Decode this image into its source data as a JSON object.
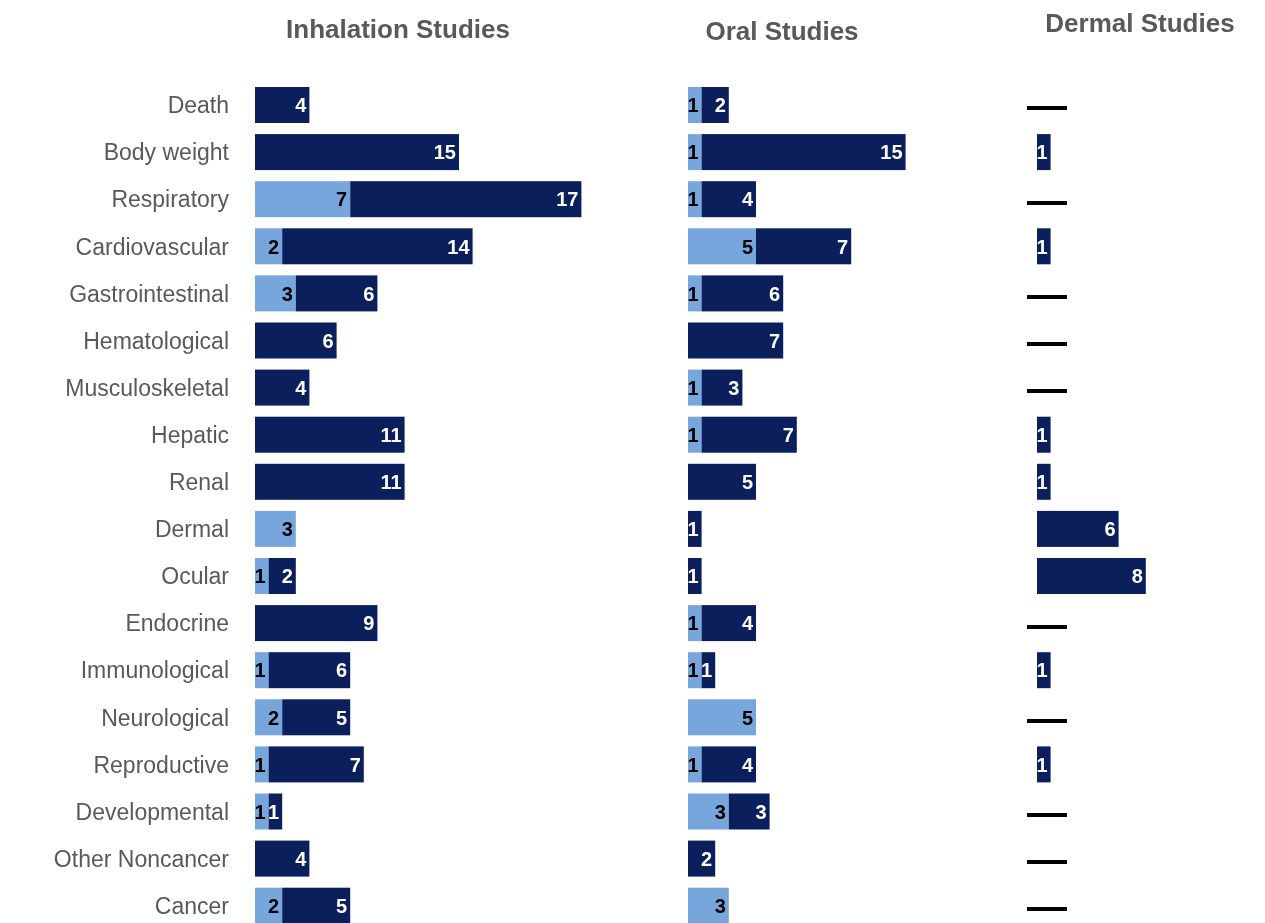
{
  "chart_data": [
    {
      "type": "bar",
      "orientation": "horizontal",
      "stacked": true,
      "title": "Inhalation Studies",
      "tick_labels": "y",
      "data_labels": true,
      "categories": [
        "Death",
        "Body weight",
        "Respiratory",
        "Cardiovascular",
        "Gastrointestinal",
        "Hematological",
        "Musculoskeletal",
        "Hepatic",
        "Renal",
        "Dermal",
        "Ocular",
        "Endocrine",
        "Immunological",
        "Neurological",
        "Reproductive",
        "Developmental",
        "Other Noncancer",
        "Cancer"
      ],
      "series": [
        {
          "color": "#77a6dc",
          "values": [
            null,
            null,
            7,
            2,
            3,
            null,
            null,
            null,
            null,
            3,
            1,
            null,
            1,
            2,
            1,
            1,
            null,
            2
          ]
        },
        {
          "color": "#0b1f5c",
          "values": [
            4,
            15,
            17,
            14,
            6,
            6,
            4,
            11,
            11,
            null,
            2,
            9,
            6,
            5,
            7,
            1,
            4,
            5
          ]
        }
      ]
    },
    {
      "type": "bar",
      "orientation": "horizontal",
      "stacked": true,
      "title": "Oral Studies",
      "tick_labels": false,
      "data_labels": true,
      "categories": [
        null,
        null,
        null,
        null,
        null,
        null,
        null,
        null,
        null,
        null,
        null,
        null,
        null,
        null,
        null,
        null,
        null,
        null
      ],
      "series": [
        {
          "color": "#77a6dc",
          "values": [
            1,
            1,
            1,
            5,
            1,
            null,
            1,
            1,
            null,
            null,
            null,
            1,
            1,
            5,
            1,
            3,
            null,
            3
          ]
        },
        {
          "color": "#0b1f5c",
          "values": [
            2,
            15,
            4,
            7,
            6,
            7,
            3,
            7,
            5,
            1,
            1,
            4,
            1,
            null,
            4,
            3,
            2,
            null
          ]
        }
      ]
    },
    {
      "type": "bar",
      "orientation": "horizontal",
      "stacked": true,
      "title": "Dermal Studies",
      "tick_labels": false,
      "categories": [
        null,
        null,
        null,
        null,
        null,
        null,
        null,
        null,
        null,
        null,
        null,
        null,
        null,
        null,
        null,
        null,
        null,
        null
      ],
      "series": [
        {
          "color": "#0b1f5c",
          "values": [
            0,
            1,
            0,
            1,
            0,
            0,
            0,
            1,
            1,
            6,
            8,
            0,
            1,
            0,
            1,
            0,
            0,
            0
          ],
          "value_labels": [
            "—",
            "1",
            "—",
            "1",
            "—",
            "—",
            "—",
            "1",
            "1",
            "6",
            "8",
            "—",
            "1",
            "—",
            "1",
            "—",
            "—",
            "—"
          ]
        }
      ]
    }
  ]
}
